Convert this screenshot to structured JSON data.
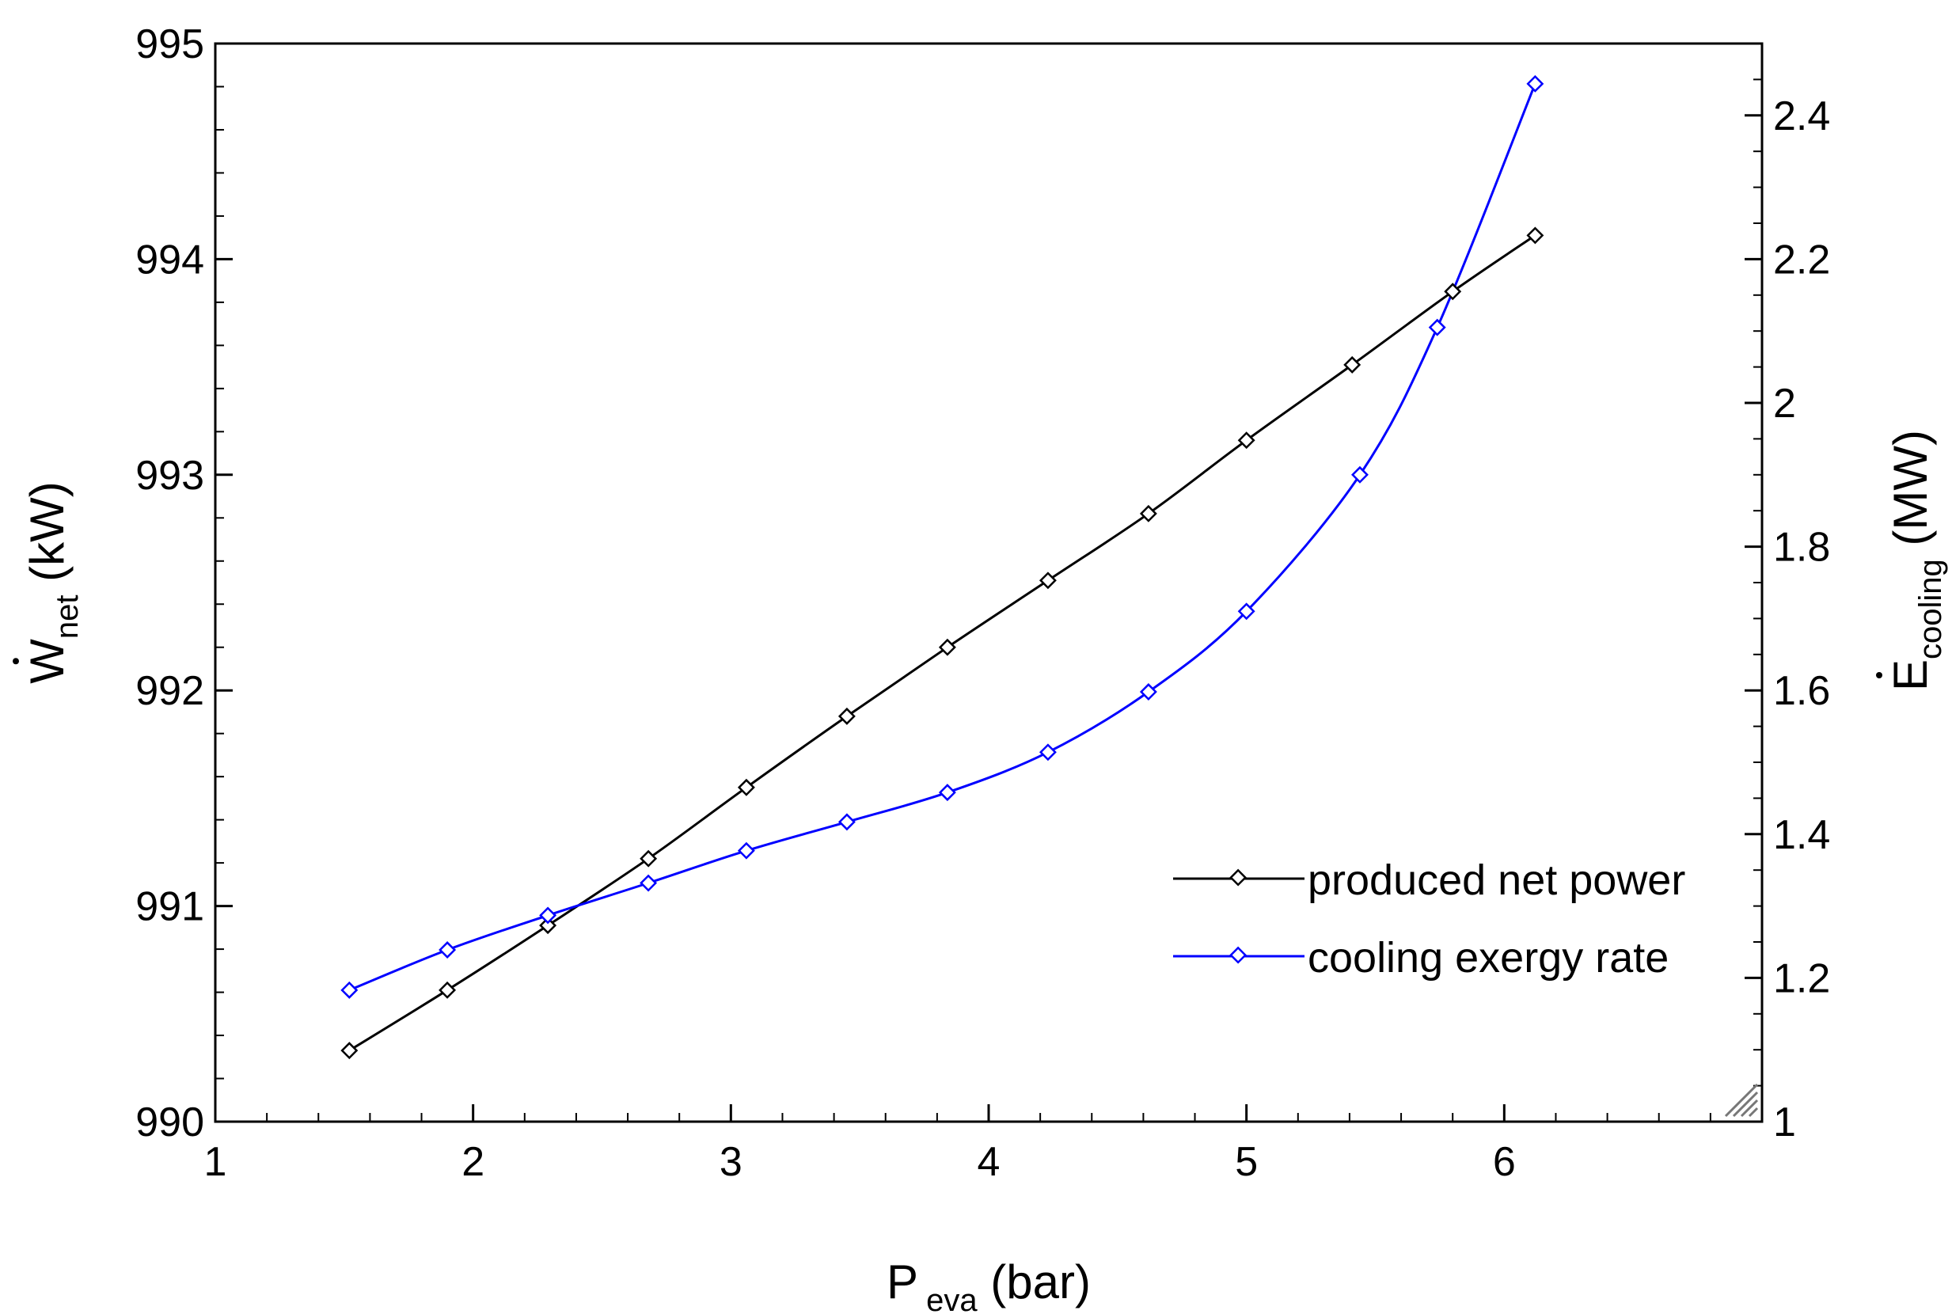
{
  "chart_data": {
    "type": "line",
    "x": [
      1.52,
      1.9,
      2.29,
      2.68,
      3.06,
      3.45,
      3.84,
      4.23,
      4.62,
      5.0,
      5.41,
      5.8,
      6.12
    ],
    "xlim": [
      1,
      7
    ],
    "ylim_left": [
      990,
      995
    ],
    "ylim_right": [
      1,
      2.5
    ],
    "x_ticks": [
      1,
      2,
      3,
      4,
      5,
      6
    ],
    "y_left_ticks": [
      990,
      991,
      992,
      993,
      994,
      995
    ],
    "y_right_ticks": [
      1,
      1.2,
      1.4,
      1.6,
      1.8,
      2,
      2.2,
      2.4
    ],
    "x_tick_labels": [
      "1",
      "2",
      "3",
      "4",
      "5",
      "6"
    ],
    "y_left_tick_labels": [
      "990",
      "991",
      "992",
      "993",
      "994",
      "995"
    ],
    "y_right_tick_labels": [
      "1",
      "1.2",
      "1.4",
      "1.6",
      "1.8",
      "2",
      "2.2",
      "2.4"
    ],
    "xlabel": {
      "main": "P",
      "sub": "eva",
      "unit": " (bar)"
    },
    "ylabel_left": {
      "main": "W",
      "sub": "net",
      "unit": " (kW)"
    },
    "ylabel_right": {
      "main": "E",
      "sub": "cooling",
      "unit": " (MW)"
    },
    "grid": false,
    "legend_position": "lower-right",
    "series": [
      {
        "name": "produced net power",
        "axis": "left",
        "color": "#000000",
        "marker": "diamond",
        "x": [
          1.52,
          1.9,
          2.29,
          2.68,
          3.06,
          3.45,
          3.84,
          4.23,
          4.62,
          5.0,
          5.41,
          5.8,
          6.12
        ],
        "values": [
          990.33,
          990.61,
          990.91,
          991.22,
          991.55,
          991.88,
          992.2,
          992.51,
          992.82,
          993.16,
          993.51,
          993.85,
          994.11
        ]
      },
      {
        "name": "cooling exergy rate",
        "axis": "right",
        "color": "#0000ff",
        "marker": "diamond",
        "x": [
          1.52,
          1.9,
          2.29,
          2.68,
          3.06,
          3.45,
          3.84,
          4.23,
          4.62,
          5.0,
          5.44,
          5.74,
          6.12
        ],
        "values": [
          1.183,
          1.239,
          1.287,
          1.332,
          1.377,
          1.417,
          1.458,
          1.514,
          1.598,
          1.71,
          1.9,
          2.105,
          2.444
        ]
      }
    ]
  }
}
